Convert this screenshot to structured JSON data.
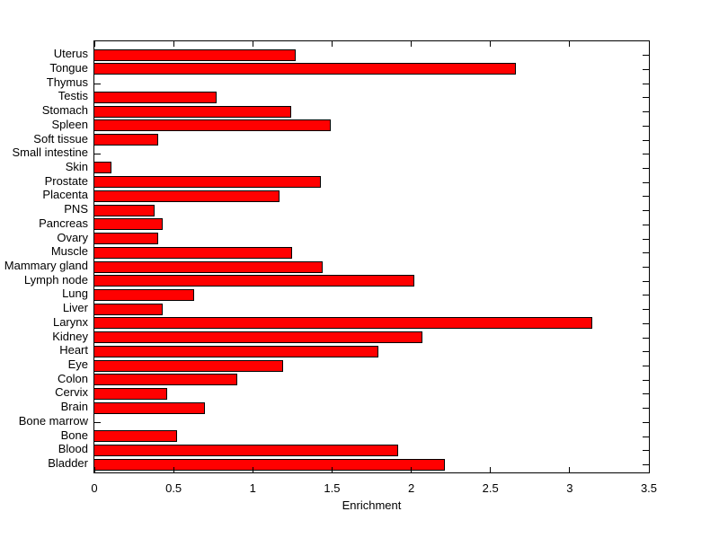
{
  "chart_data": {
    "type": "bar",
    "orientation": "horizontal",
    "title": "",
    "xlabel": "Enrichment",
    "ylabel": "",
    "xlim": [
      0,
      3.5
    ],
    "x_tick_labels": [
      "0",
      "0.5",
      "1",
      "1.5",
      "2",
      "2.5",
      "3",
      "3.5"
    ],
    "grid": false,
    "legend": null,
    "bar_color": "#FF0000",
    "bar_edge_color": "#000000",
    "axes_color": "#000000",
    "background_color": "#FFFFFF",
    "categories": [
      "Uterus",
      "Tongue",
      "Thymus",
      "Testis",
      "Stomach",
      "Spleen",
      "Soft tissue",
      "Small intestine",
      "Skin",
      "Prostate",
      "Placenta",
      "PNS",
      "Pancreas",
      "Ovary",
      "Muscle",
      "Mammary gland",
      "Lymph node",
      "Lung",
      "Liver",
      "Larynx",
      "Kidney",
      "Heart",
      "Eye",
      "Colon",
      "Cervix",
      "Brain",
      "Bone marrow",
      "Bone",
      "Blood",
      "Bladder"
    ],
    "values": [
      1.27,
      2.66,
      0,
      0.77,
      1.24,
      1.49,
      0.4,
      0,
      0.11,
      1.43,
      1.17,
      0.38,
      0.43,
      0.4,
      1.25,
      1.44,
      2.02,
      0.63,
      0.43,
      3.14,
      2.07,
      1.79,
      1.19,
      0.9,
      0.46,
      0.7,
      0,
      0.52,
      1.92,
      2.21
    ]
  }
}
